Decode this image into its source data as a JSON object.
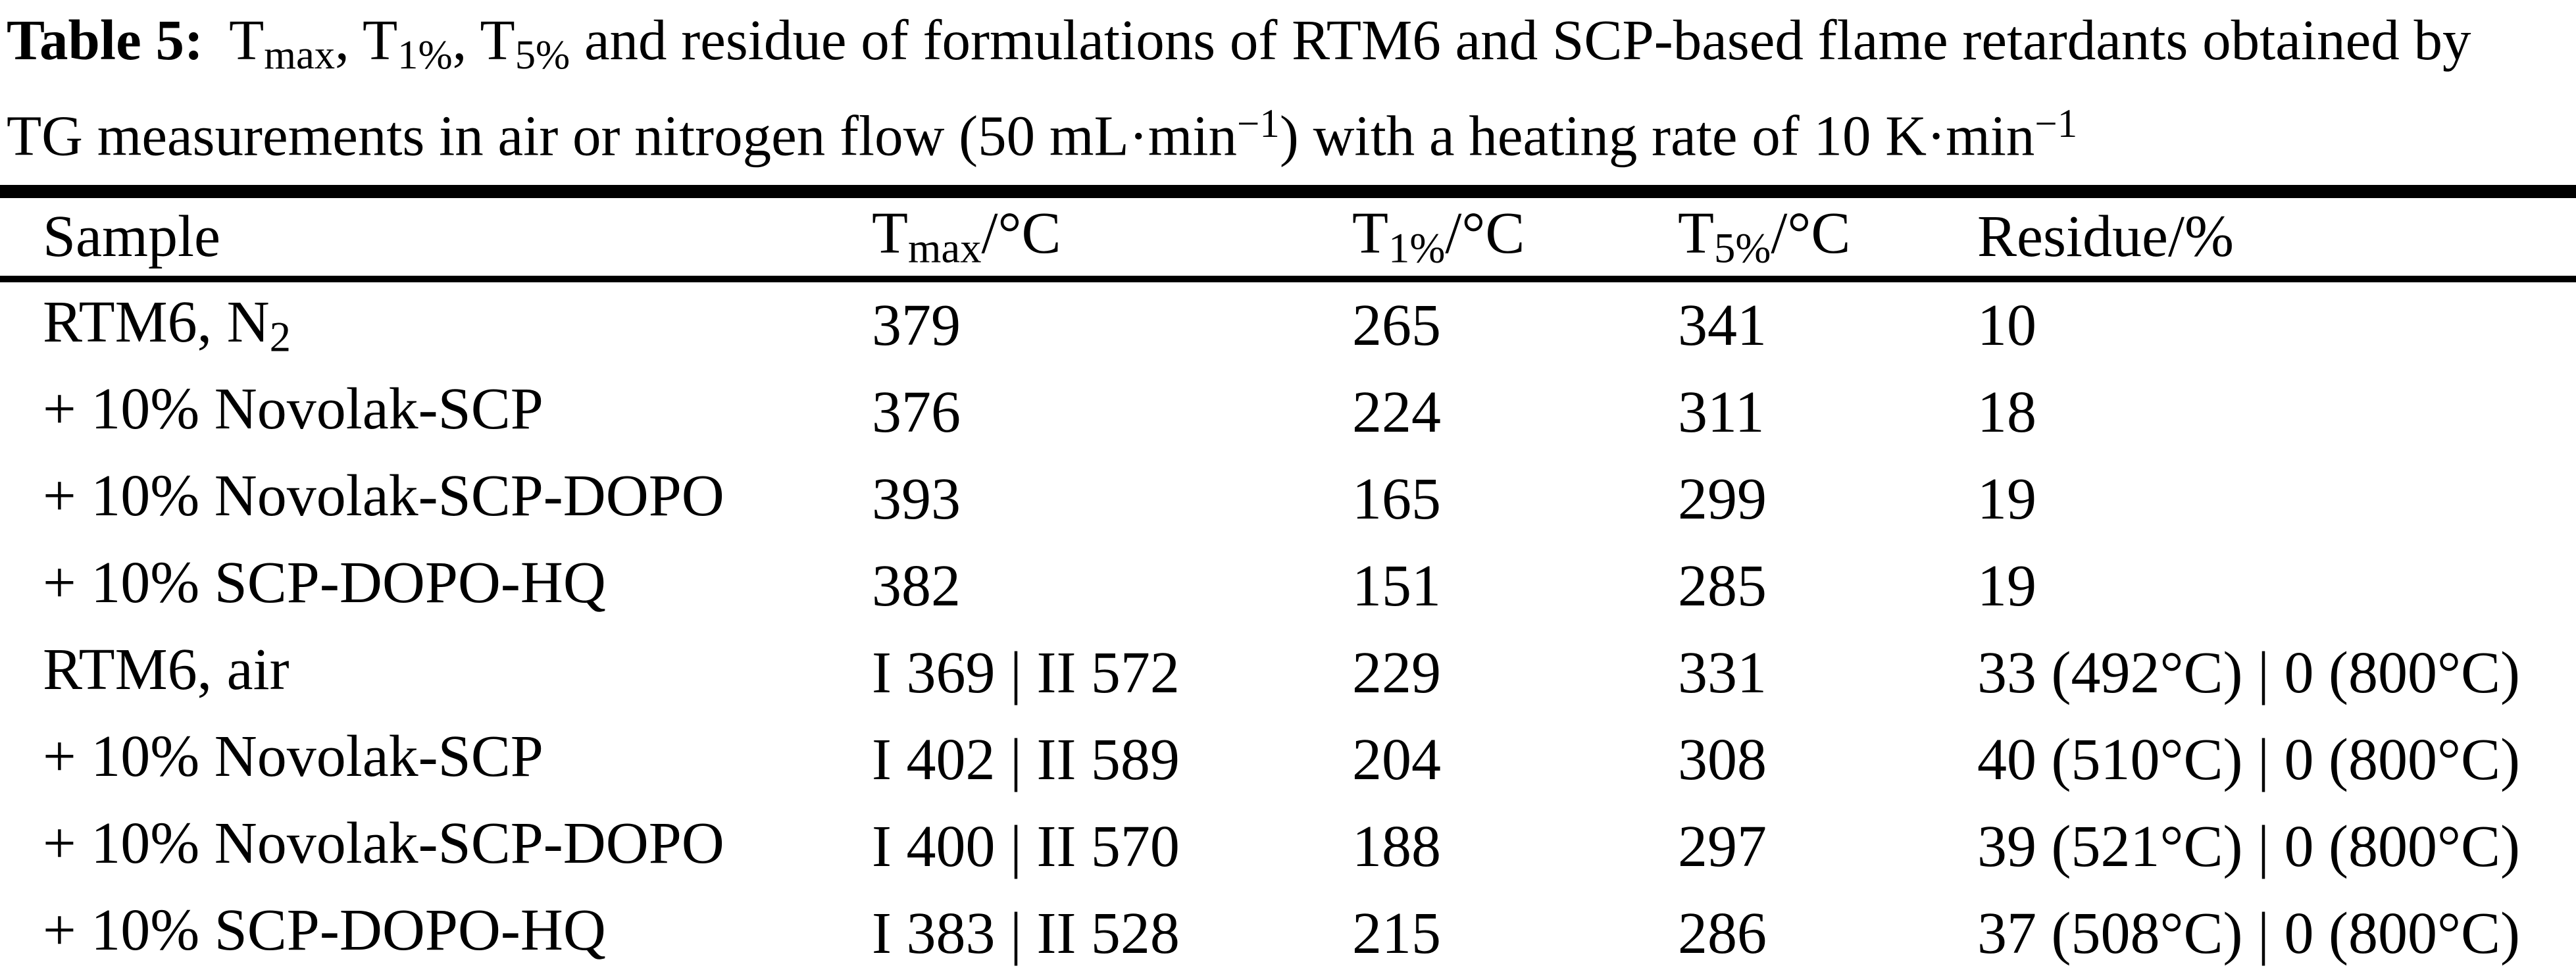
{
  "title": {
    "label": "Table 5:",
    "t1": "T",
    "t1_sub": "max",
    "t2": ", T",
    "t2_sub": "1%",
    "t3": ", T",
    "t3_sub": "5%",
    "rest1": " and residue of formulations of RTM6 and SCP-based flame retardants obtained by",
    "line2a": "TG measurements in air or nitrogen flow (50 mL·min",
    "line2a_sup": "−1",
    "line2b": ") with a heating rate of 10 K·min",
    "line2b_sup": "−1"
  },
  "table": {
    "header": {
      "sample": "Sample",
      "tmax_base": "T",
      "tmax_sub": "max",
      "tmax_unit": "/°C",
      "t1_base": "T",
      "t1_sub": "1%",
      "t1_unit": "/°C",
      "t5_base": "T",
      "t5_sub": "5%",
      "t5_unit": "/°C",
      "residue": "Residue/%"
    },
    "rows": [
      {
        "sample": "RTM6, N",
        "sample_sub": "2",
        "tmax": "379",
        "t1": "265",
        "t5": "341",
        "residue": "10"
      },
      {
        "sample": "+ 10% Novolak-SCP",
        "tmax": "376",
        "t1": "224",
        "t5": "311",
        "residue": "18"
      },
      {
        "sample": "+ 10% Novolak-SCP-DOPO",
        "tmax": "393",
        "t1": "165",
        "t5": "299",
        "residue": "19"
      },
      {
        "sample": "+ 10% SCP-DOPO-HQ",
        "tmax": "382",
        "t1": "151",
        "t5": "285",
        "residue": "19"
      },
      {
        "sample": "RTM6, air",
        "tmax": "I 369 | II 572",
        "t1": "229",
        "t5": "331",
        "residue": "33 (492°C) | 0 (800°C)"
      },
      {
        "sample": "+ 10% Novolak-SCP",
        "tmax": "I 402 | II 589",
        "t1": "204",
        "t5": "308",
        "residue": "40 (510°C) | 0 (800°C)"
      },
      {
        "sample": "+ 10% Novolak-SCP-DOPO",
        "tmax": "I 400 | II 570",
        "t1": "188",
        "t5": "297",
        "residue": "39 (521°C) | 0 (800°C)"
      },
      {
        "sample": "+ 10% SCP-DOPO-HQ",
        "tmax": "I 383 | II 528",
        "t1": "215",
        "t5": "286",
        "residue": "37 (508°C) | 0 (800°C)"
      }
    ]
  },
  "colors": {
    "text": "#000000",
    "background": "#ffffff",
    "rule": "#000000"
  }
}
